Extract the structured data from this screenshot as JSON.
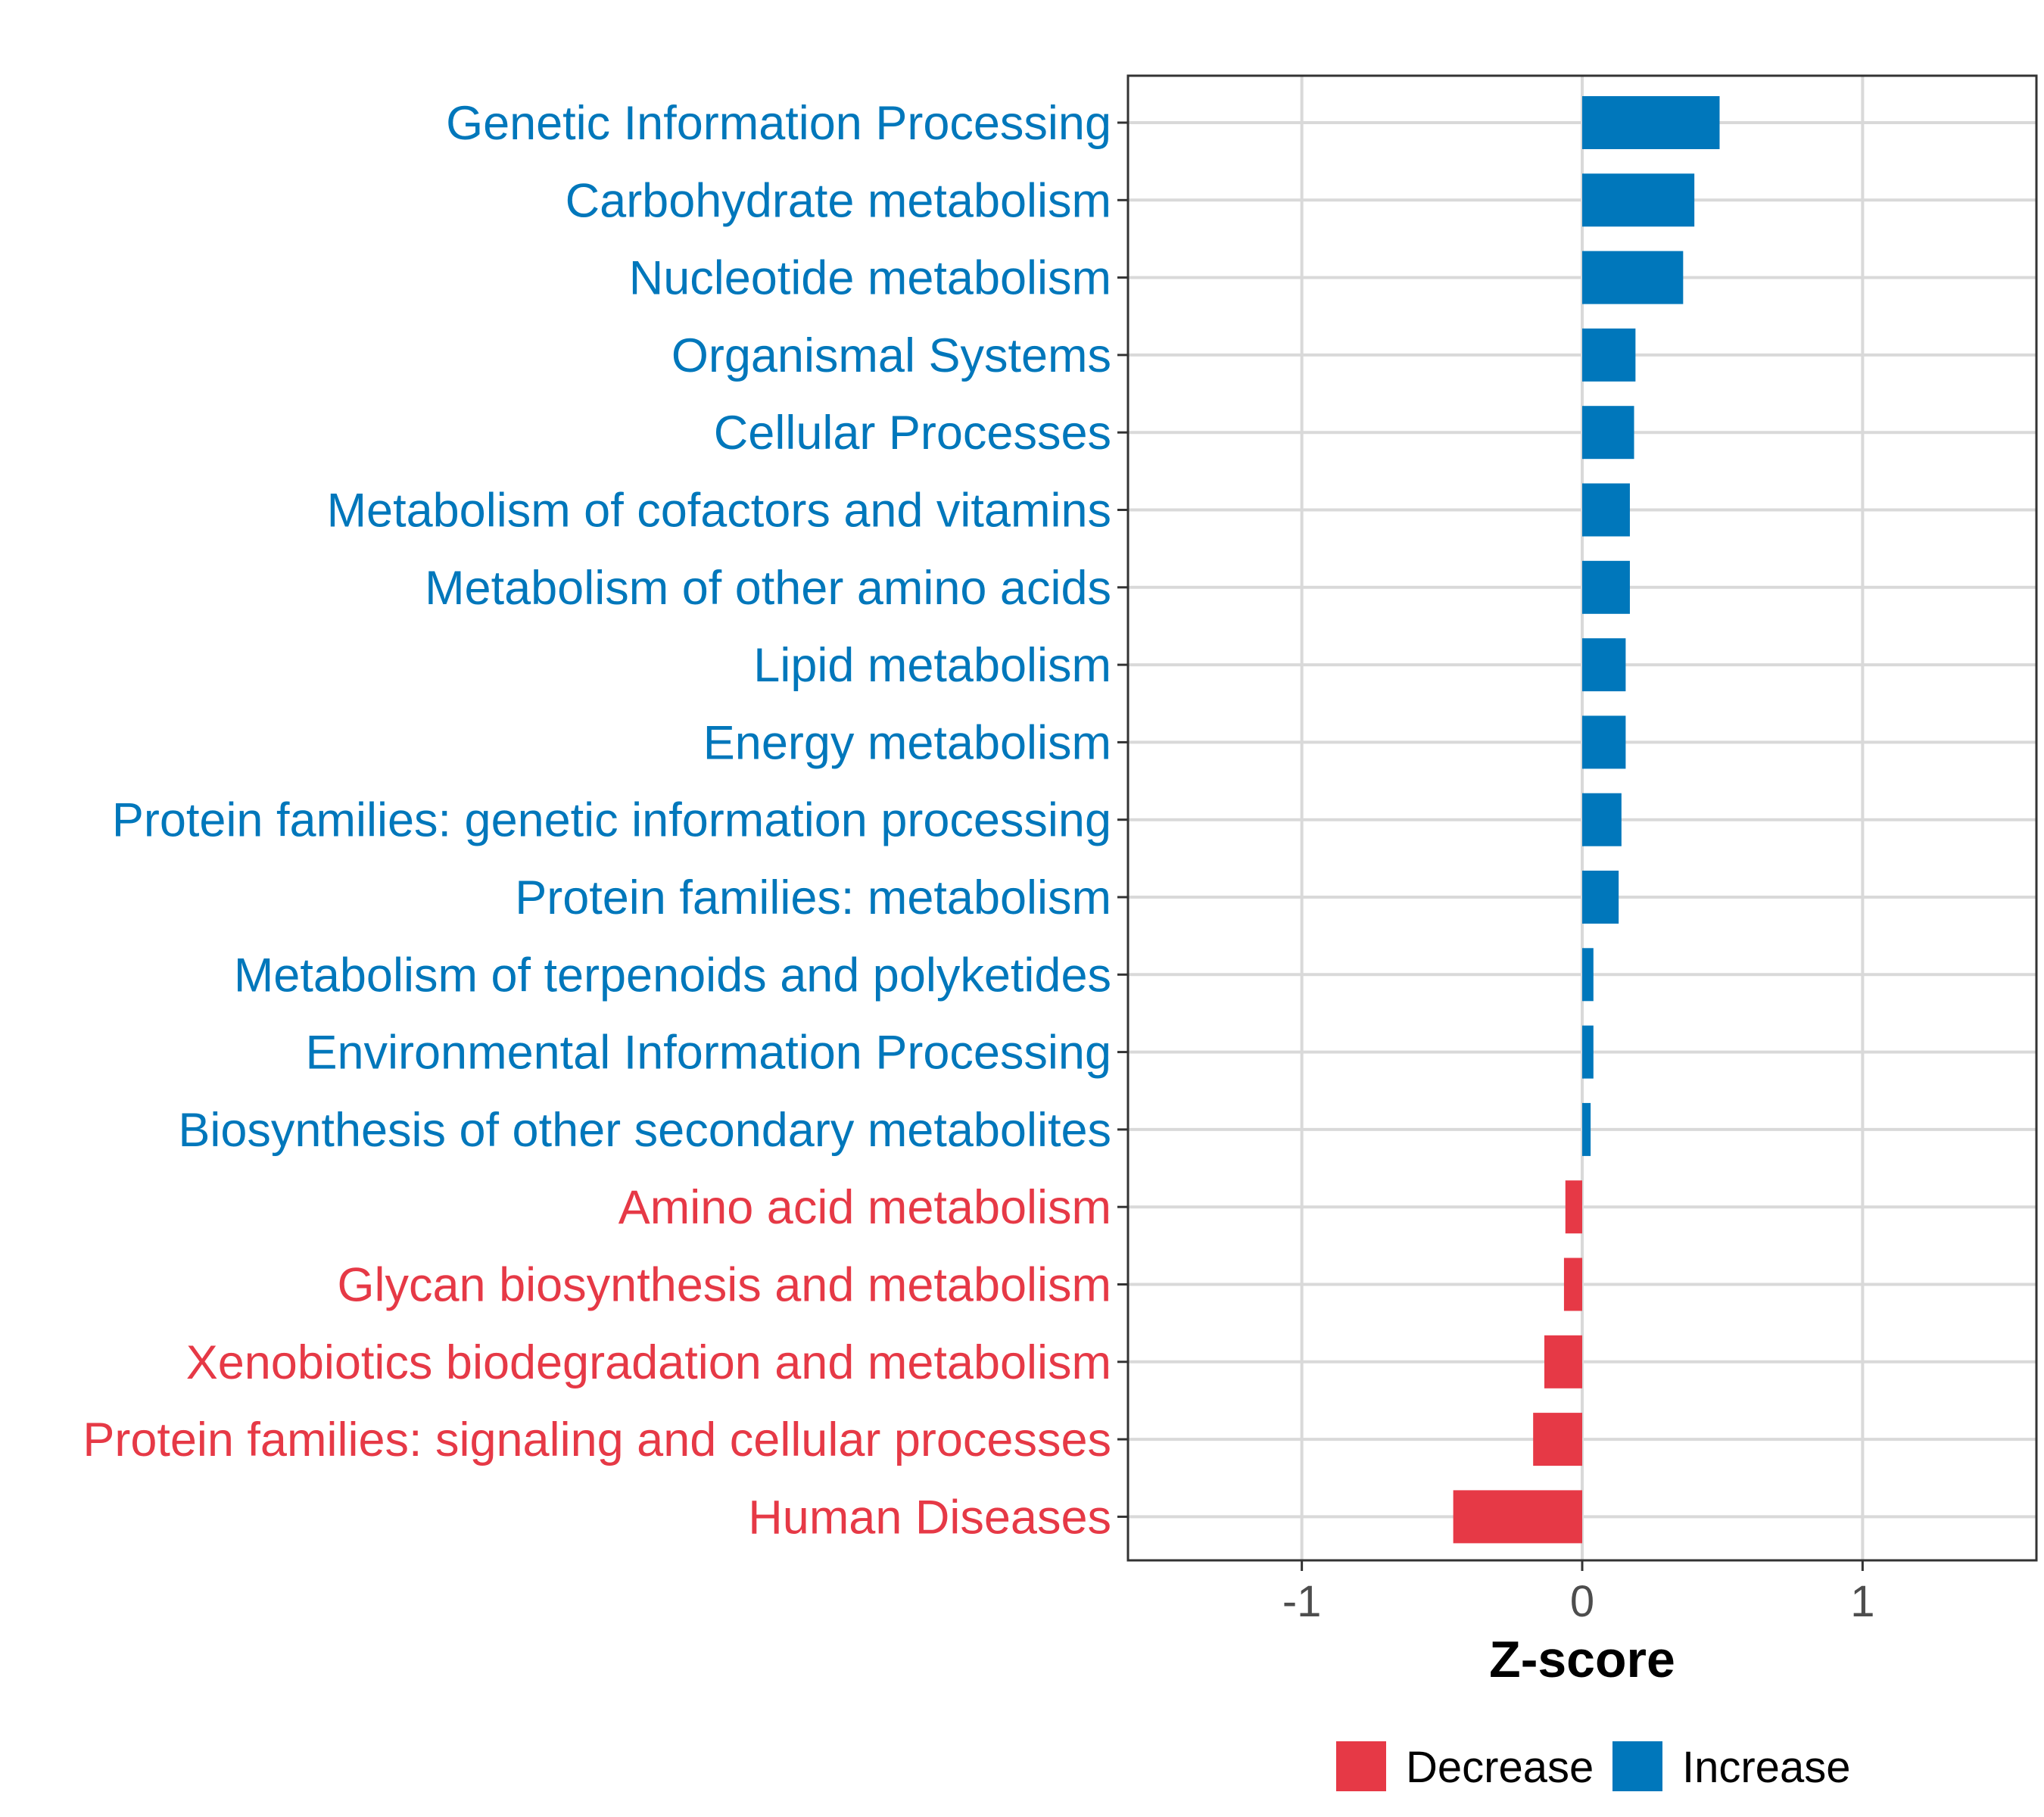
{
  "chart_data": {
    "type": "bar",
    "orientation": "horizontal",
    "xlabel": "Z-score",
    "ylabel": "",
    "xlim": [
      -1.62,
      1.62
    ],
    "xticks": [
      -1,
      0,
      1
    ],
    "xtick_labels": [
      "-1",
      "0",
      "1"
    ],
    "grid": true,
    "legend_position": "bottom",
    "colors": {
      "Decrease": "#e63946",
      "Increase": "#0077bb"
    },
    "categories": [
      "Genetic Information Processing",
      "Carbohydrate metabolism",
      "Nucleotide metabolism",
      "Organismal Systems",
      "Cellular Processes",
      "Metabolism of cofactors and vitamins",
      "Metabolism of other amino acids",
      "Lipid metabolism",
      "Energy metabolism",
      "Protein families: genetic information processing",
      "Protein families: metabolism",
      "Metabolism of terpenoids and polyketides",
      "Environmental Information Processing",
      "Biosynthesis of other secondary metabolites",
      "Amino acid metabolism",
      "Glycan biosynthesis and metabolism",
      "Xenobiotics biodegradation and metabolism",
      "Protein families: signaling and cellular processes",
      "Human Diseases"
    ],
    "values": [
      0.49,
      0.4,
      0.36,
      0.19,
      0.185,
      0.17,
      0.17,
      0.155,
      0.155,
      0.14,
      0.13,
      0.04,
      0.04,
      0.03,
      -0.06,
      -0.065,
      -0.135,
      -0.175,
      -0.46
    ],
    "legend": [
      {
        "name": "Decrease"
      },
      {
        "name": "Increase"
      }
    ]
  }
}
